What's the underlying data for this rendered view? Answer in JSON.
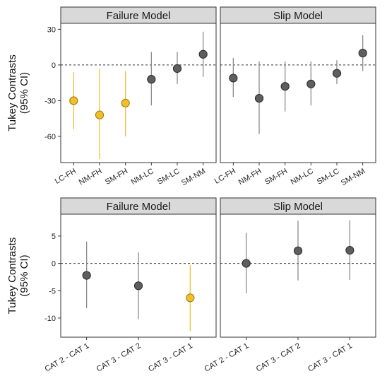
{
  "colors": {
    "highlight": "#f0c02a",
    "highlight_stroke": "#9a7a10",
    "normal": "#5e5e5e",
    "normal_stroke": "#2a2a2a",
    "normal_ci": "#8c8c8c",
    "highlight_ci": "#eec233"
  },
  "chart_data": [
    {
      "type": "scatter",
      "facet_row": 1,
      "ylabel": "Tukey Contrasts\n(95% CI)",
      "ylim": [
        -82,
        35
      ],
      "yticks": [
        30,
        0,
        -30,
        -60
      ],
      "reference_line": 0,
      "categories": [
        "LC-FH",
        "NM-FH",
        "SM-FH",
        "NM-LC",
        "SM-LC",
        "SM-NM"
      ],
      "panels": [
        {
          "title": "Failure Model",
          "points": [
            {
              "x": "LC-FH",
              "y": -30,
              "lo": -54,
              "hi": -6,
              "highlight": true
            },
            {
              "x": "NM-FH",
              "y": -42,
              "lo": -79,
              "hi": -3,
              "highlight": true
            },
            {
              "x": "SM-FH",
              "y": -32,
              "lo": -60,
              "hi": -5,
              "highlight": true
            },
            {
              "x": "NM-LC",
              "y": -12,
              "lo": -34,
              "hi": 11,
              "highlight": false
            },
            {
              "x": "SM-LC",
              "y": -3,
              "lo": -16,
              "hi": 11,
              "highlight": false
            },
            {
              "x": "SM-NM",
              "y": 9,
              "lo": -10,
              "hi": 28,
              "highlight": false
            }
          ]
        },
        {
          "title": "Slip Model",
          "points": [
            {
              "x": "LC-FH",
              "y": -11,
              "lo": -27,
              "hi": 6,
              "highlight": false
            },
            {
              "x": "NM-FH",
              "y": -28,
              "lo": -58,
              "hi": 3,
              "highlight": false
            },
            {
              "x": "SM-FH",
              "y": -18,
              "lo": -39,
              "hi": 3,
              "highlight": false
            },
            {
              "x": "NM-LC",
              "y": -16,
              "lo": -34,
              "hi": 3,
              "highlight": false
            },
            {
              "x": "SM-LC",
              "y": -7,
              "lo": -16,
              "hi": 4,
              "highlight": false
            },
            {
              "x": "SM-NM",
              "y": 10,
              "lo": -5,
              "hi": 25,
              "highlight": false
            }
          ]
        }
      ]
    },
    {
      "type": "scatter",
      "facet_row": 2,
      "ylabel": "Tukey Contrasts\n(95% CI)",
      "ylim": [
        -13.5,
        9
      ],
      "yticks": [
        5,
        0,
        -5,
        -10
      ],
      "reference_line": 0,
      "categories": [
        "CAT 2 - CAT 1",
        "CAT 3 - CAT 2",
        "CAT 3 - CAT 1"
      ],
      "panels": [
        {
          "title": "Failure Model",
          "points": [
            {
              "x": "CAT 2 - CAT 1",
              "y": -2.2,
              "lo": -8.2,
              "hi": 4,
              "highlight": false
            },
            {
              "x": "CAT 3 - CAT 2",
              "y": -4.1,
              "lo": -10.2,
              "hi": 2,
              "highlight": false
            },
            {
              "x": "CAT 3 - CAT 1",
              "y": -6.3,
              "lo": -12.4,
              "hi": -0.3,
              "highlight": true
            }
          ]
        },
        {
          "title": "Slip Model",
          "points": [
            {
              "x": "CAT 2 - CAT 1",
              "y": 0,
              "lo": -5.5,
              "hi": 5.6,
              "highlight": false
            },
            {
              "x": "CAT 3 - CAT 2",
              "y": 2.3,
              "lo": -3.1,
              "hi": 7.8,
              "highlight": false
            },
            {
              "x": "CAT 3 - CAT 1",
              "y": 2.4,
              "lo": -3.0,
              "hi": 7.9,
              "highlight": false
            }
          ]
        }
      ]
    }
  ]
}
